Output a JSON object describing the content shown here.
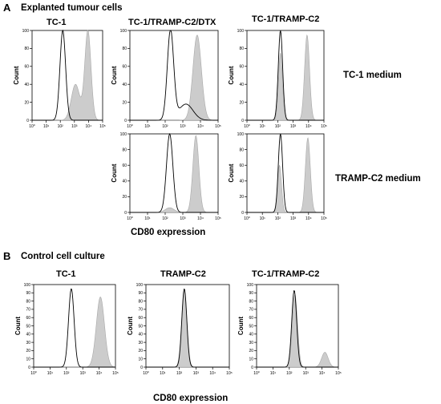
{
  "figure": {
    "panel_a_letter": "A",
    "panel_a_title": "Explanted tumour cells",
    "panel_a_xlabel": "CD80 expression",
    "row_labels": [
      "TC-1 medium",
      "TRAMP-C2 medium"
    ],
    "panel_b_letter": "B",
    "panel_b_title": "Control cell culture",
    "panel_b_xlabel": "CD80 expression",
    "colors": {
      "filled": "#cccccc",
      "filled_edge": "#a8a8a8",
      "open_line": "#000000"
    }
  },
  "chart_data": [
    {
      "type": "area",
      "panel": "A",
      "title": "TC-1",
      "ylabel": "Count",
      "xscale": "log",
      "xlim": [
        1,
        100000
      ],
      "ylim": [
        0,
        100
      ],
      "yticks": [
        "0",
        "20",
        "40",
        "60",
        "80",
        "100"
      ],
      "xticks": [
        "10⁰",
        "10¹",
        "10²",
        "10³",
        "10⁴",
        "10⁵"
      ],
      "series": [
        {
          "style": "open",
          "peaks": [
            {
              "center": 150,
              "width": 0.2,
              "height": 100
            }
          ]
        },
        {
          "style": "filled",
          "peaks": [
            {
              "center": 9000,
              "width": 0.22,
              "height": 100
            },
            {
              "center": 1200,
              "width": 0.3,
              "height": 40
            }
          ]
        }
      ]
    },
    {
      "type": "area",
      "panel": "A",
      "title": "TC-1/TRAMP-C2/DTX",
      "ylabel": "Count",
      "xscale": "log",
      "xlim": [
        1,
        100000
      ],
      "ylim": [
        0,
        100
      ],
      "yticks": [
        "0",
        "20",
        "40",
        "60",
        "80",
        "100"
      ],
      "xticks": [
        "10⁰",
        "10¹",
        "10²",
        "10³",
        "10⁴",
        "10⁵"
      ],
      "series": [
        {
          "style": "open",
          "peaks": [
            {
              "center": 200,
              "width": 0.18,
              "height": 100
            },
            {
              "center": 1500,
              "width": 0.4,
              "height": 18
            }
          ]
        },
        {
          "style": "filled",
          "peaks": [
            {
              "center": 6500,
              "width": 0.24,
              "height": 95
            }
          ]
        }
      ]
    },
    {
      "type": "area",
      "panel": "A",
      "title": "TC-1/TRAMP-C2",
      "ylabel": "Count",
      "xscale": "log",
      "xlim": [
        1,
        100000
      ],
      "ylim": [
        0,
        100
      ],
      "yticks": [
        "0",
        "20",
        "40",
        "60",
        "80",
        "100"
      ],
      "xticks": [
        "10⁰",
        "10¹",
        "10²",
        "10³",
        "10⁴",
        "10⁵"
      ],
      "series": [
        {
          "style": "open",
          "peaks": [
            {
              "center": 150,
              "width": 0.14,
              "height": 100
            }
          ]
        },
        {
          "style": "filled",
          "peaks": [
            {
              "center": 8000,
              "width": 0.16,
              "height": 95
            },
            {
              "center": 150,
              "width": 0.13,
              "height": 75
            }
          ]
        }
      ]
    },
    {
      "type": "area",
      "panel": "A",
      "title": "",
      "ylabel": "Count",
      "xscale": "log",
      "xlim": [
        1,
        100000
      ],
      "ylim": [
        0,
        100
      ],
      "yticks": [
        "0",
        "20",
        "40",
        "60",
        "80",
        "100"
      ],
      "xticks": [
        "10⁰",
        "10¹",
        "10²",
        "10³",
        "10⁴",
        "10⁵"
      ],
      "series": [
        {
          "style": "open",
          "peaks": [
            {
              "center": 180,
              "width": 0.18,
              "height": 100
            }
          ]
        },
        {
          "style": "filled",
          "peaks": [
            {
              "center": 5500,
              "width": 0.17,
              "height": 98
            },
            {
              "center": 180,
              "width": 0.25,
              "height": 6
            }
          ]
        }
      ]
    },
    {
      "type": "area",
      "panel": "A",
      "title": "",
      "ylabel": "Count",
      "xscale": "log",
      "xlim": [
        1,
        100000
      ],
      "ylim": [
        0,
        100
      ],
      "yticks": [
        "0",
        "20",
        "40",
        "60",
        "80",
        "100"
      ],
      "xticks": [
        "10⁰",
        "10¹",
        "10²",
        "10³",
        "10⁴",
        "10⁵"
      ],
      "series": [
        {
          "style": "open",
          "peaks": [
            {
              "center": 150,
              "width": 0.14,
              "height": 100
            }
          ]
        },
        {
          "style": "filled",
          "peaks": [
            {
              "center": 9000,
              "width": 0.16,
              "height": 95
            },
            {
              "center": 130,
              "width": 0.13,
              "height": 60
            }
          ]
        }
      ]
    },
    {
      "type": "area",
      "panel": "B",
      "title": "TC-1",
      "ylabel": "Count",
      "xscale": "log",
      "xlim": [
        1,
        100000
      ],
      "ylim": [
        0,
        100
      ],
      "yticks": [
        "0",
        "10",
        "20",
        "30",
        "40",
        "50",
        "60",
        "70",
        "80",
        "90",
        "100"
      ],
      "xticks": [
        "10⁰",
        "10¹",
        "10²",
        "10³",
        "10⁴",
        "10⁵"
      ],
      "series": [
        {
          "style": "open",
          "peaks": [
            {
              "center": 200,
              "width": 0.17,
              "height": 95
            }
          ]
        },
        {
          "style": "filled",
          "peaks": [
            {
              "center": 12000,
              "width": 0.25,
              "height": 85
            }
          ]
        }
      ]
    },
    {
      "type": "area",
      "panel": "B",
      "title": "TRAMP-C2",
      "ylabel": "Count",
      "xscale": "log",
      "xlim": [
        1,
        100000
      ],
      "ylim": [
        0,
        100
      ],
      "yticks": [
        "0",
        "10",
        "20",
        "30",
        "40",
        "50",
        "60",
        "70",
        "80",
        "90",
        "100"
      ],
      "xticks": [
        "10⁰",
        "10¹",
        "10²",
        "10³",
        "10⁴",
        "10⁵"
      ],
      "series": [
        {
          "style": "open",
          "peaks": [
            {
              "center": 200,
              "width": 0.15,
              "height": 95
            }
          ]
        },
        {
          "style": "filled",
          "peaks": [
            {
              "center": 200,
              "width": 0.16,
              "height": 93
            }
          ]
        }
      ]
    },
    {
      "type": "area",
      "panel": "B",
      "title": "TC-1/TRAMP-C2",
      "ylabel": "Count",
      "xscale": "log",
      "xlim": [
        1,
        100000
      ],
      "ylim": [
        0,
        100
      ],
      "yticks": [
        "0",
        "10",
        "20",
        "30",
        "40",
        "50",
        "60",
        "70",
        "80",
        "90",
        "100"
      ],
      "xticks": [
        "10⁰",
        "10¹",
        "10²",
        "10³",
        "10⁴",
        "10⁵"
      ],
      "series": [
        {
          "style": "open",
          "peaks": [
            {
              "center": 200,
              "width": 0.15,
              "height": 93
            }
          ]
        },
        {
          "style": "filled",
          "peaks": [
            {
              "center": 220,
              "width": 0.16,
              "height": 88
            },
            {
              "center": 15000,
              "width": 0.2,
              "height": 18
            }
          ]
        }
      ]
    }
  ]
}
